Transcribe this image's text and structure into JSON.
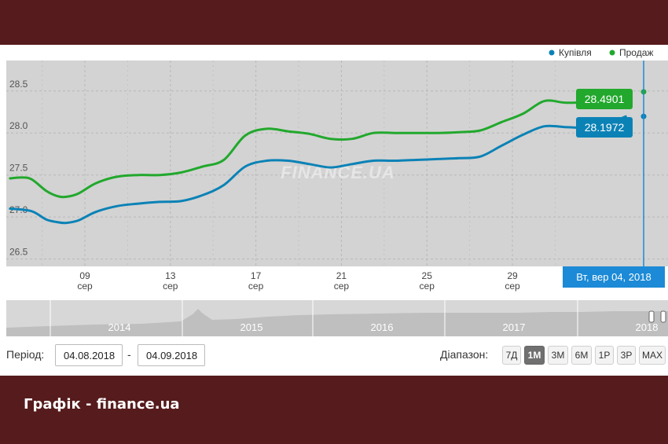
{
  "caption": "Графік - finance.ua",
  "colors": {
    "buy": "#0b82b6",
    "sell": "#22a82d",
    "plot_bg": "#d3d3d3",
    "crosshair": "#1c8ad6",
    "frame": "#561b1c"
  },
  "controls": {
    "period_label": "Період:",
    "date_from": "04.08.2018",
    "dash": "-",
    "date_to": "04.09.2018",
    "range_label": "Діапазон:",
    "range_buttons": [
      "7Д",
      "1М",
      "3М",
      "6М",
      "1Р",
      "3Р",
      "MAX"
    ],
    "active_range": "1М"
  },
  "tooltip_date": "Вт, вер 04, 2018",
  "watermark": "FINANCE.UA",
  "chart_data": {
    "type": "line",
    "legend": [
      "Купівля",
      "Продаж"
    ],
    "legend_position": "top-right",
    "y_ticks": [
      "26.5",
      "27.0",
      "27.5",
      "28.0",
      "28.5"
    ],
    "ylim": [
      26.45,
      28.9
    ],
    "x_ticks": [
      {
        "day": 9,
        "label": "09",
        "sub": "сер"
      },
      {
        "day": 13,
        "label": "13",
        "sub": "сер"
      },
      {
        "day": 17,
        "label": "17",
        "sub": "сер"
      },
      {
        "day": 21,
        "label": "21",
        "sub": "сер"
      },
      {
        "day": 25,
        "label": "25",
        "sub": "сер"
      },
      {
        "day": 29,
        "label": "29",
        "sub": "сер"
      }
    ],
    "grid": true,
    "series": [
      {
        "name": "Купівля",
        "x": [
          5.5,
          6.5,
          7.2,
          7.7,
          8.1,
          8.7,
          9.5,
          10.5,
          11.5,
          12.5,
          13.5,
          14.5,
          15.5,
          16.5,
          17.5,
          18.5,
          19.5,
          20.5,
          21.5,
          22.5,
          23.5,
          24.5,
          25.5,
          26.5,
          27.5,
          28.5,
          29.5,
          30.5,
          31.5,
          32.5,
          33.5,
          34.0,
          34.3
        ],
        "y": [
          27.1,
          27.07,
          26.97,
          26.94,
          26.93,
          26.96,
          27.06,
          27.13,
          27.16,
          27.18,
          27.19,
          27.26,
          27.38,
          27.6,
          27.67,
          27.67,
          27.63,
          27.59,
          27.63,
          27.67,
          27.67,
          27.68,
          27.69,
          27.7,
          27.72,
          27.85,
          27.98,
          28.08,
          28.07,
          28.06,
          28.07,
          28.16,
          28.1972
        ]
      },
      {
        "name": "Продаж",
        "x": [
          5.5,
          6.0,
          6.5,
          7.2,
          7.7,
          8.1,
          8.7,
          9.5,
          10.5,
          11.5,
          12.5,
          13.5,
          14.5,
          15.5,
          16.5,
          17.5,
          18.5,
          19.5,
          20.5,
          21.5,
          22.5,
          23.5,
          24.5,
          25.5,
          26.5,
          27.5,
          28.5,
          29.5,
          30.5,
          31.5,
          32.5,
          33.5,
          34.0,
          34.3
        ],
        "y": [
          27.46,
          27.47,
          27.45,
          27.31,
          27.25,
          27.24,
          27.28,
          27.4,
          27.48,
          27.5,
          27.5,
          27.53,
          27.6,
          27.68,
          27.97,
          28.05,
          28.02,
          27.99,
          27.93,
          27.93,
          28.0,
          28.0,
          28.0,
          28.0,
          28.01,
          28.03,
          28.13,
          28.23,
          28.38,
          28.36,
          28.37,
          28.4,
          28.45,
          28.4901
        ]
      }
    ],
    "current_values": {
      "sell": "28.4901",
      "buy": "28.1972"
    },
    "navigator": {
      "labels": [
        "2014",
        "2015",
        "2016",
        "2017",
        "2018"
      ]
    }
  }
}
